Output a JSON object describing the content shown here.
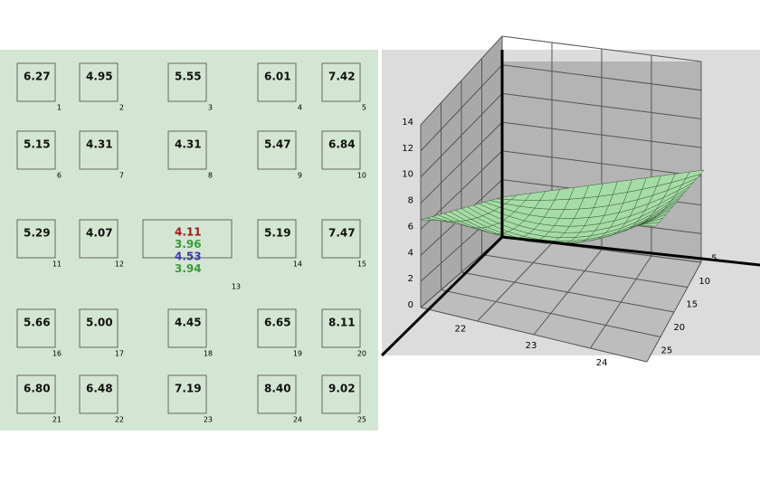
{
  "grid_panel": {
    "cells": [
      {
        "index": "1",
        "value": "6.27"
      },
      {
        "index": "2",
        "value": "4.95"
      },
      {
        "index": "3",
        "value": "5.55"
      },
      {
        "index": "4",
        "value": "6.01"
      },
      {
        "index": "5",
        "value": "7.42"
      },
      {
        "index": "6",
        "value": "5.15"
      },
      {
        "index": "7",
        "value": "4.31"
      },
      {
        "index": "8",
        "value": "4.31"
      },
      {
        "index": "9",
        "value": "5.47"
      },
      {
        "index": "10",
        "value": "6.84"
      },
      {
        "index": "11",
        "value": "5.29"
      },
      {
        "index": "12",
        "value": "4.07"
      },
      {
        "index": "13",
        "values": [
          {
            "text": "4.11",
            "color": "#a01818"
          },
          {
            "text": "3.96",
            "color": "#3a9a3a"
          },
          {
            "text": "4.53",
            "color": "#3a3ab0"
          },
          {
            "text": "3.94",
            "color": "#3a9a3a"
          }
        ]
      },
      {
        "index": "14",
        "value": "5.19"
      },
      {
        "index": "15",
        "value": "7.47"
      },
      {
        "index": "16",
        "value": "5.66"
      },
      {
        "index": "17",
        "value": "5.00"
      },
      {
        "index": "18",
        "value": "4.45"
      },
      {
        "index": "19",
        "value": "6.65"
      },
      {
        "index": "20",
        "value": "8.11"
      },
      {
        "index": "21",
        "value": "6.80"
      },
      {
        "index": "22",
        "value": "6.48"
      },
      {
        "index": "23",
        "value": "7.19"
      },
      {
        "index": "24",
        "value": "8.40"
      },
      {
        "index": "25",
        "value": "9.02"
      }
    ]
  },
  "plot_3d": {
    "z_ticks": [
      "0",
      "2",
      "4",
      "6",
      "8",
      "10",
      "12",
      "14"
    ],
    "x_ticks": [
      "22",
      "23",
      "24"
    ],
    "y_ticks": [
      "5",
      "10",
      "15",
      "20",
      "25"
    ]
  }
}
